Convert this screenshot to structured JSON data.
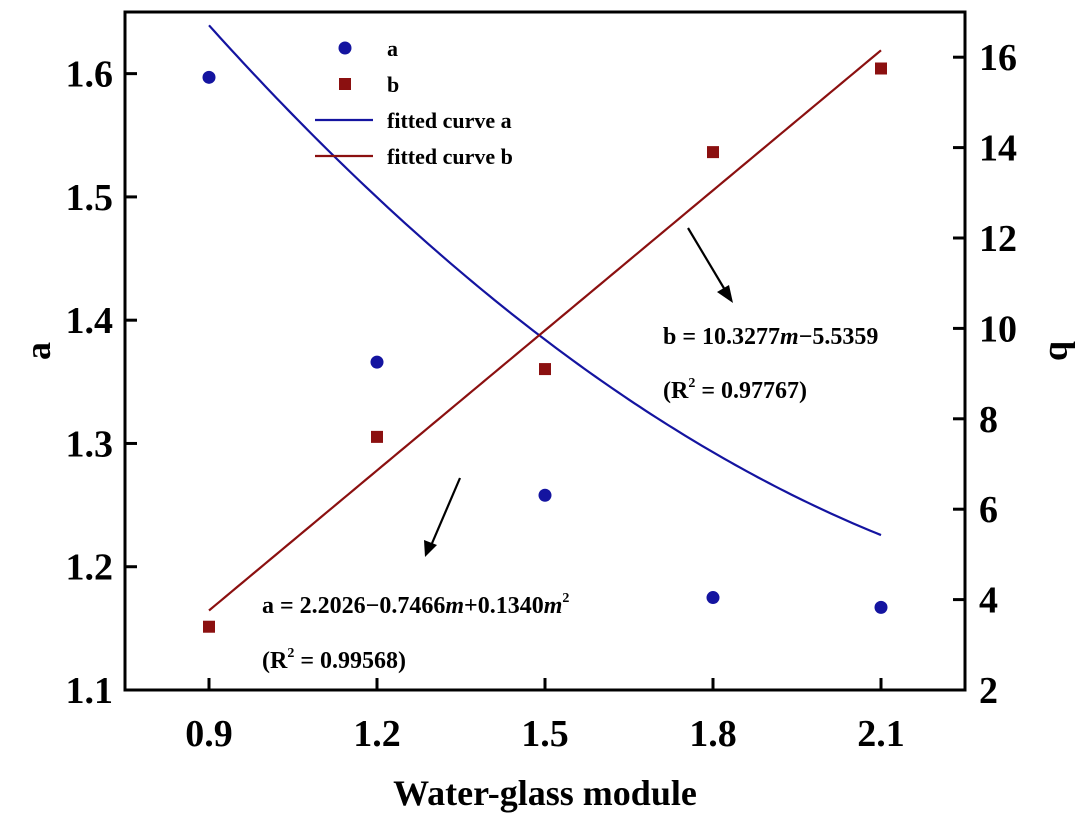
{
  "chart_data": {
    "type": "scatter",
    "title": "",
    "xlabel": "Water-glass module",
    "ylabel_left": "a",
    "ylabel_right": "b",
    "x": [
      0.9,
      1.2,
      1.5,
      1.8,
      2.1
    ],
    "xticks": [
      "0.9",
      "1.2",
      "1.5",
      "1.8",
      "2.1"
    ],
    "xlim": [
      0.75,
      2.25
    ],
    "ylim_left": [
      1.1,
      1.65
    ],
    "ylim_right": [
      2,
      17
    ],
    "yticks_left": [
      "1.1",
      "1.2",
      "1.3",
      "1.4",
      "1.5",
      "1.6"
    ],
    "yticks_right": [
      "2",
      "4",
      "6",
      "8",
      "10",
      "12",
      "14",
      "16"
    ],
    "series": [
      {
        "name": "a",
        "axis": "left",
        "marker": "circle",
        "color": "#1414a0",
        "values": [
          1.597,
          1.366,
          1.258,
          1.175,
          1.167
        ]
      },
      {
        "name": "b",
        "axis": "right",
        "marker": "square",
        "color": "#8b1010",
        "values": [
          3.4,
          7.6,
          9.1,
          13.9,
          15.75
        ]
      }
    ],
    "fits": [
      {
        "name": "fitted curve a",
        "axis": "left",
        "color": "#1414a0",
        "coef": [
          2.2026,
          -0.7466,
          0.134
        ]
      },
      {
        "name": "fitted curve b",
        "axis": "right",
        "color": "#8b1010",
        "coef": [
          -5.5359,
          10.3277
        ]
      }
    ],
    "legend": {
      "position": "top-left",
      "entries": [
        "a",
        "b",
        "fitted curve a",
        "fitted curve b"
      ]
    },
    "annotations": [
      {
        "id": "eq_b",
        "eq_prefix": "b = 10.3277",
        "eq_var1": "m",
        "eq_mid": "−5.5359",
        "r2_open": "(R",
        "r2_sup": "2",
        "r2_rest": " = 0.97767)"
      },
      {
        "id": "eq_a",
        "eq_prefix": "a = 2.2026−0.7466",
        "eq_var1": "m",
        "eq_mid": "+0.1340",
        "eq_var2": "m",
        "eq_sup": "2",
        "r2_open": "(R",
        "r2_sup": "2",
        "r2_rest": " = 0.99568)"
      }
    ]
  }
}
